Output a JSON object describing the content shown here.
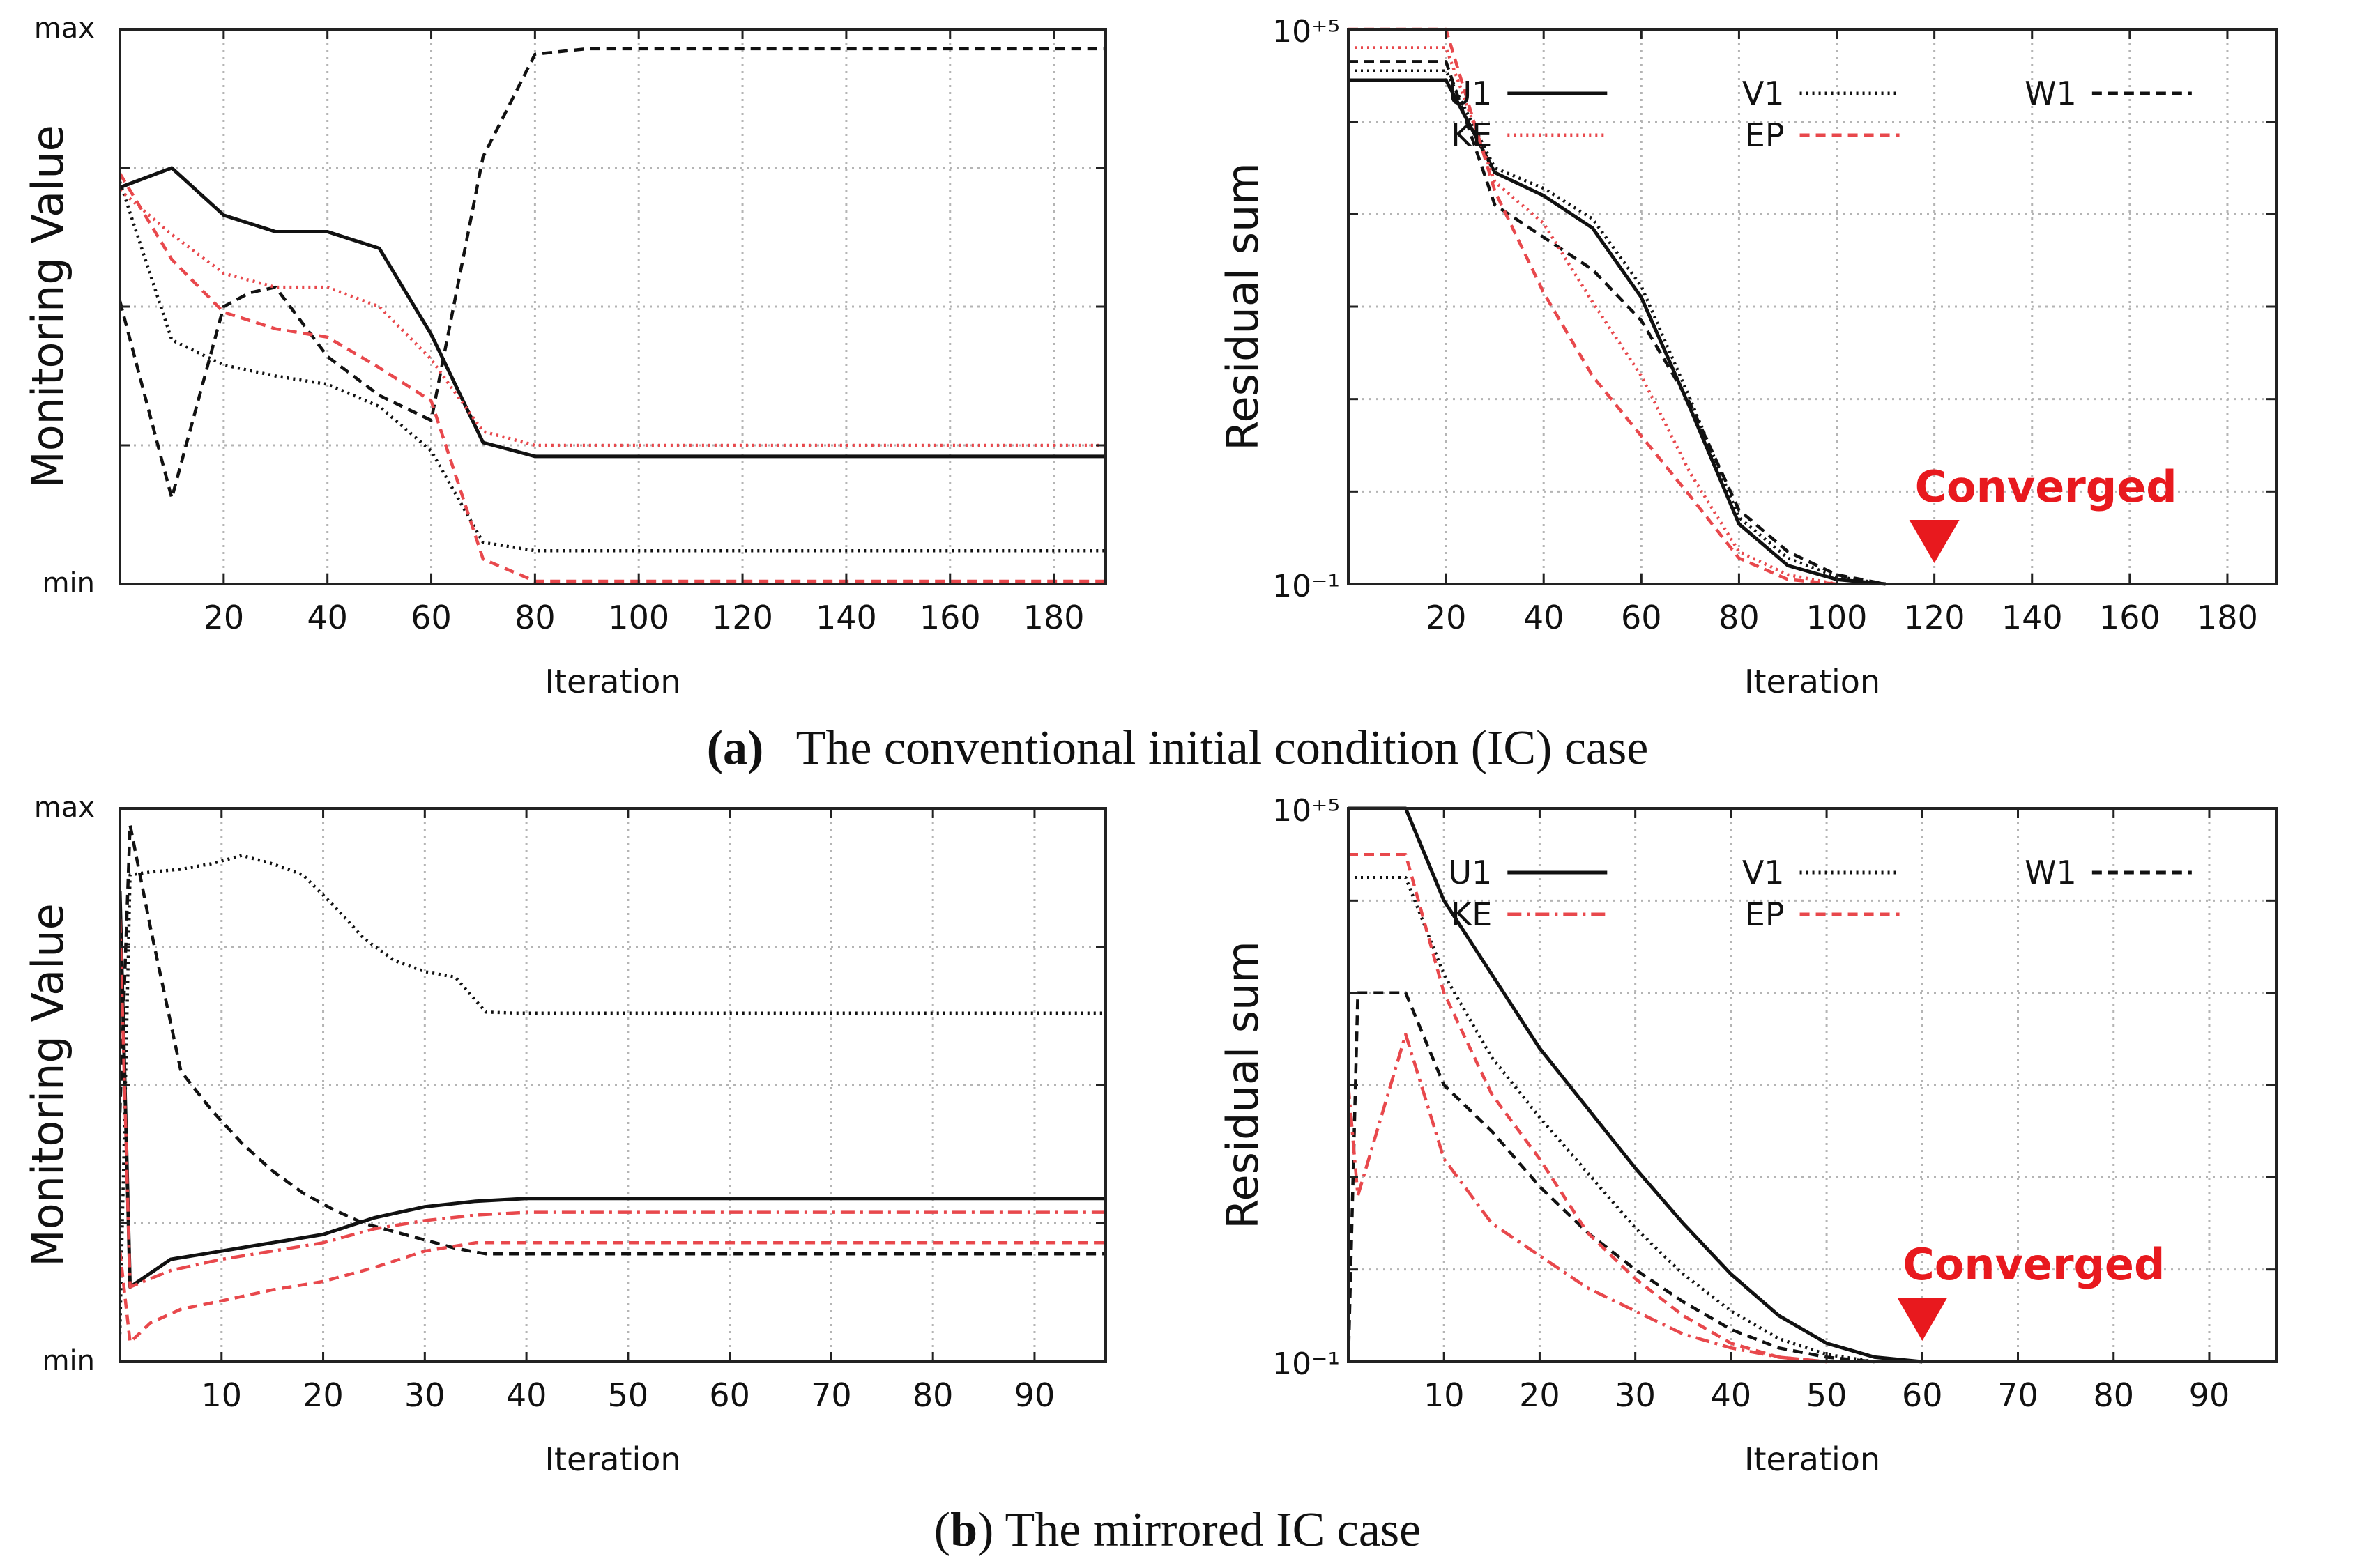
{
  "captions": {
    "a_label": "(a)",
    "a_text": "The conventional initial condition (IC) case",
    "b_open": "(",
    "b_label": "b",
    "b_text": ") The mirrored IC case"
  },
  "colors": {
    "black": "#111111",
    "red": "#e8484c",
    "grid": "#b4b4b4",
    "marker": "#e8191e"
  },
  "chart_data": [
    {
      "id": "a-monitor",
      "type": "line",
      "title": "",
      "xlabel": "Iteration",
      "ylabel": "Monitoring Value",
      "xlim": [
        0,
        190
      ],
      "ylim": [
        0,
        100
      ],
      "xticks": [
        20,
        40,
        60,
        80,
        100,
        120,
        140,
        160,
        180
      ],
      "ytick_labels": {
        "min": "min",
        "max": "max"
      },
      "grid": true,
      "series": [
        {
          "name": "U1",
          "color": "black",
          "dash": "solid",
          "x": [
            0,
            10,
            20,
            30,
            40,
            50,
            60,
            70,
            80,
            190
          ],
          "y": [
            71.5,
            75,
            66.5,
            63.5,
            63.5,
            60.5,
            45,
            25.5,
            23,
            23
          ]
        },
        {
          "name": "V1",
          "color": "black",
          "dash": "dotted",
          "x": [
            0,
            10,
            20,
            30,
            40,
            50,
            60,
            70,
            80,
            190
          ],
          "y": [
            72.5,
            44,
            39.5,
            37.5,
            36,
            32,
            24,
            7.5,
            6,
            6
          ]
        },
        {
          "name": "W1",
          "color": "black",
          "dash": "dashed",
          "x": [
            0,
            10,
            20,
            25,
            30,
            40,
            50,
            60,
            70,
            80,
            90,
            190
          ],
          "y": [
            51,
            15.5,
            50,
            52.5,
            53.5,
            41,
            34,
            29.5,
            77,
            95.5,
            96.5,
            96.5
          ]
        },
        {
          "name": "KE",
          "color": "red",
          "dash": "dotted",
          "x": [
            0,
            10,
            20,
            30,
            40,
            50,
            60,
            70,
            80,
            190
          ],
          "y": [
            71,
            63,
            56,
            53.5,
            53.5,
            50,
            40.5,
            27.5,
            25,
            25
          ]
        },
        {
          "name": "EP",
          "color": "red",
          "dash": "dashed",
          "x": [
            0,
            10,
            20,
            30,
            40,
            50,
            60,
            70,
            80,
            190
          ],
          "y": [
            74,
            58.5,
            49,
            46,
            44.5,
            39,
            33,
            4.5,
            0.5,
            0.5
          ]
        }
      ],
      "legend": []
    },
    {
      "id": "a-residual",
      "type": "line",
      "scale": "log",
      "title": "",
      "xlabel": "Iteration",
      "ylabel": "Residual sum",
      "xlim": [
        0,
        190
      ],
      "ylim": [
        -1,
        5
      ],
      "xticks": [
        20,
        40,
        60,
        80,
        100,
        120,
        140,
        160,
        180
      ],
      "ytick_labels": {
        "low": "10⁻¹",
        "high": "10⁺⁵"
      },
      "grid": true,
      "annotation": {
        "text": "Converged",
        "x": 120
      },
      "series": [
        {
          "name": "U1",
          "color": "black",
          "dash": "solid",
          "x": [
            0,
            20,
            30,
            40,
            50,
            60,
            70,
            80,
            90,
            100,
            110
          ],
          "y": [
            4.45,
            4.45,
            3.45,
            3.2,
            2.85,
            2.1,
            0.9,
            -0.35,
            -0.8,
            -0.95,
            -1.0
          ]
        },
        {
          "name": "V1",
          "color": "black",
          "dash": "dotted",
          "x": [
            0,
            20,
            30,
            40,
            50,
            60,
            70,
            80,
            90,
            100,
            110
          ],
          "y": [
            4.55,
            4.55,
            3.5,
            3.28,
            2.95,
            2.22,
            1.0,
            -0.28,
            -0.72,
            -0.92,
            -1.0
          ]
        },
        {
          "name": "W1",
          "color": "black",
          "dash": "dashed",
          "x": [
            0,
            20,
            30,
            40,
            50,
            60,
            70,
            80,
            90,
            100,
            110
          ],
          "y": [
            4.65,
            4.65,
            3.1,
            2.75,
            2.4,
            1.85,
            0.95,
            -0.2,
            -0.65,
            -0.9,
            -1.0
          ]
        },
        {
          "name": "KE",
          "color": "red",
          "dash": "dotted",
          "x": [
            0,
            20,
            30,
            40,
            50,
            60,
            70,
            80,
            90,
            100
          ],
          "y": [
            4.8,
            4.8,
            3.35,
            2.9,
            2.05,
            1.25,
            0.2,
            -0.65,
            -0.9,
            -1.0
          ]
        },
        {
          "name": "EP",
          "color": "red",
          "dash": "dashed",
          "x": [
            0,
            20,
            30,
            40,
            50,
            60,
            70,
            80,
            90,
            100
          ],
          "y": [
            5.0,
            5.0,
            3.25,
            2.15,
            1.25,
            0.6,
            -0.05,
            -0.72,
            -0.95,
            -1.0
          ]
        }
      ],
      "legend": [
        {
          "label": "U1",
          "color": "black",
          "dash": "solid"
        },
        {
          "label": "V1",
          "color": "black",
          "dash": "dotted"
        },
        {
          "label": "W1",
          "color": "black",
          "dash": "dashed"
        },
        {
          "label": "KE",
          "color": "red",
          "dash": "dotted"
        },
        {
          "label": "EP",
          "color": "red",
          "dash": "dashed"
        }
      ]
    },
    {
      "id": "b-monitor",
      "type": "line",
      "title": "",
      "xlabel": "Iteration",
      "ylabel": "Monitoring Value",
      "xlim": [
        0,
        97
      ],
      "ylim": [
        0,
        100
      ],
      "xticks": [
        10,
        20,
        30,
        40,
        50,
        60,
        70,
        80,
        90
      ],
      "ytick_labels": {
        "min": "min",
        "max": "max"
      },
      "grid": true,
      "series": [
        {
          "name": "U1",
          "color": "black",
          "dash": "solid",
          "x": [
            0,
            1,
            5,
            10,
            15,
            20,
            25,
            30,
            35,
            40,
            97
          ],
          "y": [
            85,
            13.5,
            18.5,
            20,
            21.5,
            23,
            26,
            28,
            29,
            29.5,
            29.5
          ]
        },
        {
          "name": "V1",
          "color": "black",
          "dash": "dotted",
          "x": [
            0,
            1,
            3,
            6,
            9,
            12,
            15,
            18,
            21,
            24,
            27,
            30,
            33,
            36,
            39,
            97
          ],
          "y": [
            5,
            88,
            88.5,
            89,
            90,
            91.5,
            90,
            88,
            82.5,
            76.5,
            72.5,
            70.5,
            69.5,
            63.2,
            63,
            63
          ]
        },
        {
          "name": "W1",
          "color": "black",
          "dash": "dashed",
          "x": [
            0,
            1,
            3,
            6,
            9,
            12,
            15,
            18,
            21,
            24,
            27,
            30,
            33,
            36,
            40,
            97
          ],
          "y": [
            45,
            97,
            78.5,
            52.5,
            45.5,
            39.5,
            34.5,
            30.5,
            27.5,
            25,
            23.5,
            22,
            20.5,
            19.5,
            19.5,
            19.5
          ]
        },
        {
          "name": "KE",
          "color": "red",
          "dash": "dashdot",
          "x": [
            0,
            1,
            5,
            10,
            15,
            20,
            25,
            30,
            35,
            40,
            97
          ],
          "y": [
            80,
            13.5,
            16.5,
            18.5,
            20,
            21.5,
            24,
            25.5,
            26.5,
            27,
            27
          ]
        },
        {
          "name": "EP",
          "color": "red",
          "dash": "dashed",
          "x": [
            0,
            1,
            3,
            6,
            10,
            15,
            20,
            25,
            30,
            35,
            40,
            97
          ],
          "y": [
            20,
            3.5,
            7,
            9.5,
            11,
            13,
            14.5,
            17,
            20,
            21.5,
            21.5,
            21.5
          ]
        }
      ],
      "legend": []
    },
    {
      "id": "b-residual",
      "type": "line",
      "scale": "log",
      "title": "",
      "xlabel": "Iteration",
      "ylabel": "Residual sum",
      "xlim": [
        0,
        97
      ],
      "ylim": [
        -1,
        5
      ],
      "xticks": [
        10,
        20,
        30,
        40,
        50,
        60,
        70,
        80,
        90
      ],
      "ytick_labels": {
        "low": "10⁻¹",
        "high": "10⁺⁵"
      },
      "grid": true,
      "annotation": {
        "text": "Converged",
        "x": 60
      },
      "series": [
        {
          "name": "U1",
          "color": "black",
          "dash": "solid",
          "x": [
            0,
            6,
            10,
            15,
            20,
            25,
            30,
            35,
            40,
            45,
            50,
            55,
            60
          ],
          "y": [
            5.0,
            5.0,
            4.0,
            3.2,
            2.4,
            1.75,
            1.1,
            0.5,
            -0.05,
            -0.5,
            -0.8,
            -0.95,
            -1.0
          ]
        },
        {
          "name": "V1",
          "color": "black",
          "dash": "dotted",
          "x": [
            0,
            6,
            10,
            15,
            20,
            25,
            30,
            35,
            40,
            45,
            50,
            55
          ],
          "y": [
            4.25,
            4.25,
            3.2,
            2.3,
            1.65,
            1.05,
            0.45,
            -0.05,
            -0.45,
            -0.75,
            -0.92,
            -1.0
          ]
        },
        {
          "name": "W1",
          "color": "black",
          "dash": "dashed",
          "x": [
            0,
            1,
            6,
            10,
            15,
            20,
            25,
            30,
            35,
            40,
            45,
            50,
            55
          ],
          "y": [
            -1.0,
            3.0,
            3.0,
            2.0,
            1.5,
            0.9,
            0.4,
            0.0,
            -0.35,
            -0.65,
            -0.85,
            -0.95,
            -1.0
          ]
        },
        {
          "name": "KE",
          "color": "red",
          "dash": "dashdot",
          "x": [
            0,
            1,
            6,
            10,
            15,
            20,
            25,
            30,
            35,
            40,
            45,
            50
          ],
          "y": [
            2.0,
            0.8,
            2.55,
            1.2,
            0.5,
            0.15,
            -0.2,
            -0.45,
            -0.7,
            -0.85,
            -0.95,
            -1.0
          ]
        },
        {
          "name": "EP",
          "color": "red",
          "dash": "dashed",
          "x": [
            0,
            1,
            6,
            10,
            15,
            20,
            25,
            30,
            35,
            40,
            45,
            50
          ],
          "y": [
            4.5,
            4.5,
            4.5,
            3.0,
            1.9,
            1.2,
            0.4,
            -0.1,
            -0.5,
            -0.8,
            -0.95,
            -1.0
          ]
        }
      ],
      "legend": [
        {
          "label": "U1",
          "color": "black",
          "dash": "solid"
        },
        {
          "label": "V1",
          "color": "black",
          "dash": "dotted"
        },
        {
          "label": "W1",
          "color": "black",
          "dash": "dashed"
        },
        {
          "label": "KE",
          "color": "red",
          "dash": "dashdot"
        },
        {
          "label": "EP",
          "color": "red",
          "dash": "dashed"
        }
      ]
    }
  ]
}
